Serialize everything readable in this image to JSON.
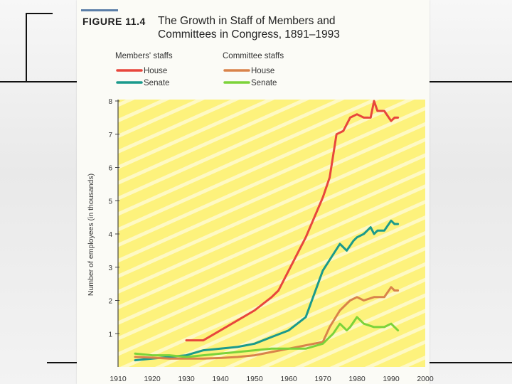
{
  "figure": {
    "number": "FIGURE 11.4",
    "title_line1": "The Growth in Staff of Members and",
    "title_line2": "Committees in Congress, 1891–1993"
  },
  "colors": {
    "plot_bg": "#fdf27c",
    "stripe": "#ffffff",
    "house_members": "#e8463c",
    "senate_members": "#1a9a8c",
    "house_committee": "#d9834a",
    "senate_committee": "#7cd33a"
  },
  "chart_data": {
    "type": "line",
    "title": "The Growth in Staff of Members and Committees in Congress, 1891–1993",
    "xlabel": "",
    "ylabel": "Number of employees (in thousands)",
    "xlim": [
      1910,
      2000
    ],
    "ylim": [
      0,
      8
    ],
    "x_ticks": [
      "1910",
      "1920",
      "1930",
      "1940",
      "1950",
      "1960",
      "1970",
      "1980",
      "1990",
      "2000"
    ],
    "y_ticks": [
      "1",
      "2",
      "3",
      "4",
      "5",
      "6",
      "7",
      "8"
    ],
    "grid": false,
    "legend": {
      "groups": [
        {
          "heading": "Members' staffs",
          "entries": [
            "House",
            "Senate"
          ]
        },
        {
          "heading": "Committee staffs",
          "entries": [
            "House",
            "Senate"
          ]
        }
      ],
      "placement": "top-left"
    },
    "series": [
      {
        "name": "House",
        "group": "Members' staffs",
        "color_key": "house_members",
        "x": [
          1930,
          1935,
          1940,
          1945,
          1950,
          1955,
          1957,
          1960,
          1965,
          1970,
          1972,
          1974,
          1976,
          1978,
          1980,
          1982,
          1984,
          1985,
          1986,
          1988,
          1990,
          1991,
          1992
        ],
        "y": [
          0.8,
          0.8,
          1.1,
          1.4,
          1.7,
          2.1,
          2.3,
          2.9,
          3.9,
          5.1,
          5.7,
          7.0,
          7.1,
          7.5,
          7.6,
          7.5,
          7.5,
          8.0,
          7.7,
          7.7,
          7.4,
          7.5,
          7.5
        ]
      },
      {
        "name": "Senate",
        "group": "Members' staffs",
        "color_key": "senate_members",
        "x": [
          1915,
          1920,
          1925,
          1930,
          1935,
          1940,
          1945,
          1950,
          1955,
          1960,
          1965,
          1970,
          1975,
          1977,
          1979,
          1980,
          1982,
          1984,
          1985,
          1986,
          1988,
          1990,
          1991,
          1992
        ],
        "y": [
          0.2,
          0.25,
          0.3,
          0.35,
          0.5,
          0.55,
          0.6,
          0.7,
          0.9,
          1.1,
          1.5,
          2.9,
          3.7,
          3.5,
          3.8,
          3.9,
          4.0,
          4.2,
          4.0,
          4.1,
          4.1,
          4.4,
          4.3,
          4.3
        ]
      },
      {
        "name": "House",
        "group": "Committee staffs",
        "color_key": "house_committee",
        "x": [
          1915,
          1920,
          1925,
          1930,
          1935,
          1940,
          1945,
          1950,
          1955,
          1960,
          1965,
          1970,
          1972,
          1975,
          1978,
          1980,
          1982,
          1985,
          1988,
          1990,
          1991,
          1992
        ],
        "y": [
          0.3,
          0.28,
          0.25,
          0.25,
          0.25,
          0.27,
          0.3,
          0.35,
          0.45,
          0.55,
          0.65,
          0.75,
          1.2,
          1.7,
          2.0,
          2.1,
          2.0,
          2.1,
          2.1,
          2.4,
          2.3,
          2.3
        ]
      },
      {
        "name": "Senate",
        "group": "Committee staffs",
        "color_key": "senate_committee",
        "x": [
          1915,
          1920,
          1925,
          1930,
          1935,
          1940,
          1945,
          1950,
          1955,
          1960,
          1965,
          1970,
          1973,
          1975,
          1977,
          1978,
          1980,
          1982,
          1985,
          1988,
          1990,
          1991,
          1992
        ],
        "y": [
          0.4,
          0.35,
          0.35,
          0.3,
          0.35,
          0.4,
          0.45,
          0.5,
          0.55,
          0.55,
          0.55,
          0.7,
          1.0,
          1.3,
          1.1,
          1.2,
          1.5,
          1.3,
          1.2,
          1.2,
          1.3,
          1.2,
          1.1
        ]
      }
    ]
  }
}
